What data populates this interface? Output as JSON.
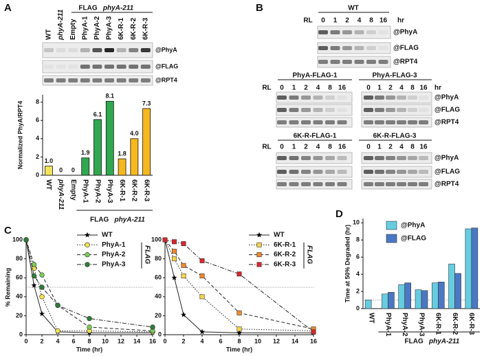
{
  "panel_labels": [
    "A",
    "B",
    "C",
    "D"
  ],
  "blot_a": {
    "lanes": [
      "WT",
      "phyA-211",
      "Empty",
      "PhyA-1",
      "PhyA-2",
      "PhyA-3",
      "6K-R-1",
      "6K-R-2",
      "6K-R-3"
    ],
    "header": {
      "tag": "FLAG",
      "gene": "phyA-211"
    },
    "antibodies": [
      "@PhyA",
      "@FLAG",
      "@RPT4"
    ]
  },
  "blot_b": {
    "rl": "RL",
    "unit": "hr",
    "antibodies": [
      "@PhyA",
      "@FLAG",
      "@RPT4"
    ],
    "groups": [
      {
        "title": "WT",
        "times": [
          0,
          1,
          2,
          4,
          8,
          16
        ]
      },
      {
        "title": "PhyA-FLAG-1",
        "times": [
          0,
          1,
          2,
          4,
          8,
          16
        ]
      },
      {
        "title": "PhyA-FLAG-3",
        "times": [
          0,
          1,
          2,
          4,
          8,
          16
        ]
      },
      {
        "title": "6K-R-FLAG-1",
        "times": [
          0,
          1,
          2,
          4,
          8,
          16
        ]
      },
      {
        "title": "6K-R-FLAG-3",
        "times": [
          0,
          1,
          2,
          4,
          8,
          16
        ]
      }
    ]
  },
  "chart_data": [
    {
      "type": "bar",
      "ylabel": "Normalized PhyA/RPT4",
      "categories": [
        "WT",
        "phyA-211",
        "Empty",
        "PhyA-1",
        "PhyA-2",
        "PhyA-3",
        "6K-R-1",
        "6K-R-2",
        "6K-R-3"
      ],
      "values": [
        1.0,
        0,
        0,
        1.9,
        6.1,
        8.1,
        1.8,
        4.0,
        7.3
      ],
      "value_labels": [
        "1.0",
        "0",
        "0",
        "1.9",
        "6.1",
        "8.1",
        "1.8",
        "4.0",
        "7.3"
      ],
      "colors": [
        "#f2e35a",
        "#bbbbbb",
        "#bbbbbb",
        "#2fa84f",
        "#2fa84f",
        "#2fa84f",
        "#f7b81f",
        "#f7b81f",
        "#f7b81f"
      ],
      "ylim": [
        0,
        8.8
      ],
      "yticks": [
        0,
        2,
        4,
        6,
        8
      ],
      "group_label": {
        "tag": "FLAG",
        "gene": "phyA-211"
      }
    },
    {
      "type": "line",
      "xlabel": "Time (hr)",
      "ylabel": "% Remaining",
      "legend_group": "FLAG",
      "x": [
        0,
        1,
        2,
        4,
        8,
        16
      ],
      "xlim": [
        0,
        16
      ],
      "xticks": [
        0,
        2,
        4,
        6,
        8,
        10,
        12,
        14,
        16
      ],
      "ylim": [
        0,
        100
      ],
      "yticks": [
        0,
        20,
        40,
        60,
        80,
        100
      ],
      "reference_line": 50,
      "series": [
        {
          "name": "WT",
          "color": "#000000",
          "marker": "star",
          "dash": "solid",
          "values": [
            100,
            52,
            22,
            3,
            2,
            2
          ]
        },
        {
          "name": "PhyA-1",
          "color": "#f3e24e",
          "marker": "circle",
          "dash": "dotted",
          "values": [
            100,
            70,
            40,
            4,
            4,
            3
          ]
        },
        {
          "name": "PhyA-2",
          "color": "#7ccb5a",
          "marker": "circle",
          "dash": "dashed",
          "values": [
            100,
            74,
            63,
            31,
            8,
            4
          ]
        },
        {
          "name": "PhyA-3",
          "color": "#2e7d3a",
          "marker": "circle",
          "dash": "dashdot",
          "values": [
            100,
            62,
            50,
            31,
            17,
            8
          ]
        }
      ]
    },
    {
      "type": "line",
      "xlabel": "Time (hr)",
      "legend_group": "FLAG",
      "x": [
        0,
        1,
        2,
        4,
        8,
        16
      ],
      "xlim": [
        0,
        16
      ],
      "xticks": [
        0,
        2,
        4,
        6,
        8,
        10,
        12,
        14,
        16
      ],
      "ylim": [
        0,
        100
      ],
      "yticks": [
        0,
        20,
        40,
        60,
        80,
        100
      ],
      "reference_line": 50,
      "series": [
        {
          "name": "WT",
          "color": "#000000",
          "marker": "star",
          "dash": "solid",
          "values": [
            100,
            60,
            21,
            3,
            2,
            2
          ]
        },
        {
          "name": "6K-R-1",
          "color": "#f7d54a",
          "marker": "square",
          "dash": "dotted",
          "values": [
            100,
            80,
            62,
            40,
            6,
            4
          ]
        },
        {
          "name": "6K-R-2",
          "color": "#f08a2a",
          "marker": "square",
          "dash": "dashed",
          "values": [
            100,
            88,
            73,
            62,
            23,
            6
          ]
        },
        {
          "name": "6K-R-3",
          "color": "#d8262e",
          "marker": "square",
          "dash": "dashdot",
          "values": [
            100,
            98,
            96,
            78,
            64,
            3
          ]
        }
      ]
    },
    {
      "type": "grouped_bar",
      "ylabel": "Time at 50% Degraded (hr)",
      "categories": [
        "WT",
        "PhyA-1",
        "PhyA-2",
        "PhyA-3",
        "6K-R-1",
        "6K-R-2",
        "6K-R-3"
      ],
      "series": [
        {
          "name": "@PhyA",
          "color": "#66cde0",
          "values": [
            1.0,
            1.7,
            2.8,
            2.2,
            3.0,
            5.2,
            9.3
          ]
        },
        {
          "name": "@FLAG",
          "color": "#4a78c2",
          "values": [
            null,
            1.9,
            3.0,
            2.1,
            3.1,
            4.1,
            9.4
          ]
        }
      ],
      "ylim": [
        0,
        10.5
      ],
      "yticks": [
        0,
        2,
        4,
        6,
        8,
        10
      ],
      "reference_line": 1,
      "group_label": {
        "tag": "FLAG",
        "gene": "phyA-211"
      }
    }
  ]
}
